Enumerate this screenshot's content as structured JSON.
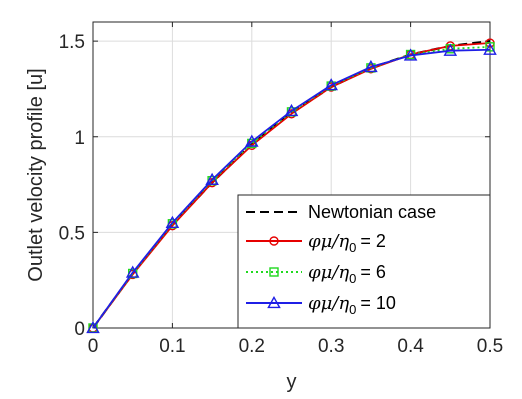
{
  "chart_data": {
    "type": "line",
    "xlabel": "y",
    "ylabel": "Outlet velocity profile [u]",
    "xlim": [
      0,
      0.5
    ],
    "ylim": [
      0,
      1.6
    ],
    "xticks": [
      "0",
      "0.1",
      "0.2",
      "0.3",
      "0.4",
      "0.5"
    ],
    "yticks": [
      "0",
      "0.5",
      "1",
      "1.5"
    ],
    "grid": true,
    "legend_position": "bottom-right",
    "series": [
      {
        "name": "Newtonian case",
        "color": "#000000",
        "line_style": "dashed",
        "marker": "none",
        "x": [
          0,
          0.05,
          0.1,
          0.15,
          0.2,
          0.25,
          0.3,
          0.35,
          0.4,
          0.45,
          0.5
        ],
        "y": [
          0,
          0.285,
          0.54,
          0.76,
          0.96,
          1.125,
          1.26,
          1.36,
          1.43,
          1.475,
          1.5
        ]
      },
      {
        "name_prefix": "φμ/η",
        "name_sub": "0",
        "name_value": "= 2",
        "color": "#e60000",
        "line_style": "solid",
        "marker": "circle",
        "x": [
          0,
          0.05,
          0.1,
          0.15,
          0.2,
          0.25,
          0.3,
          0.35,
          0.4,
          0.45,
          0.5
        ],
        "y": [
          0,
          0.28,
          0.535,
          0.76,
          0.955,
          1.12,
          1.26,
          1.355,
          1.43,
          1.475,
          1.49
        ]
      },
      {
        "name_prefix": "φμ/η",
        "name_sub": "0",
        "name_value": "= 6",
        "color": "#1fd81f",
        "line_style": "dotted",
        "marker": "square",
        "x": [
          0,
          0.05,
          0.1,
          0.15,
          0.2,
          0.25,
          0.3,
          0.35,
          0.4,
          0.45,
          0.5
        ],
        "y": [
          0,
          0.285,
          0.545,
          0.77,
          0.965,
          1.13,
          1.265,
          1.36,
          1.43,
          1.46,
          1.47
        ]
      },
      {
        "name_prefix": "φμ/η",
        "name_sub": "0",
        "name_value": "= 10",
        "color": "#1f1fe6",
        "line_style": "solid",
        "marker": "triangle",
        "x": [
          0,
          0.05,
          0.1,
          0.15,
          0.2,
          0.25,
          0.3,
          0.35,
          0.4,
          0.45,
          0.5
        ],
        "y": [
          0,
          0.29,
          0.55,
          0.775,
          0.975,
          1.135,
          1.27,
          1.365,
          1.425,
          1.45,
          1.455
        ]
      }
    ]
  }
}
